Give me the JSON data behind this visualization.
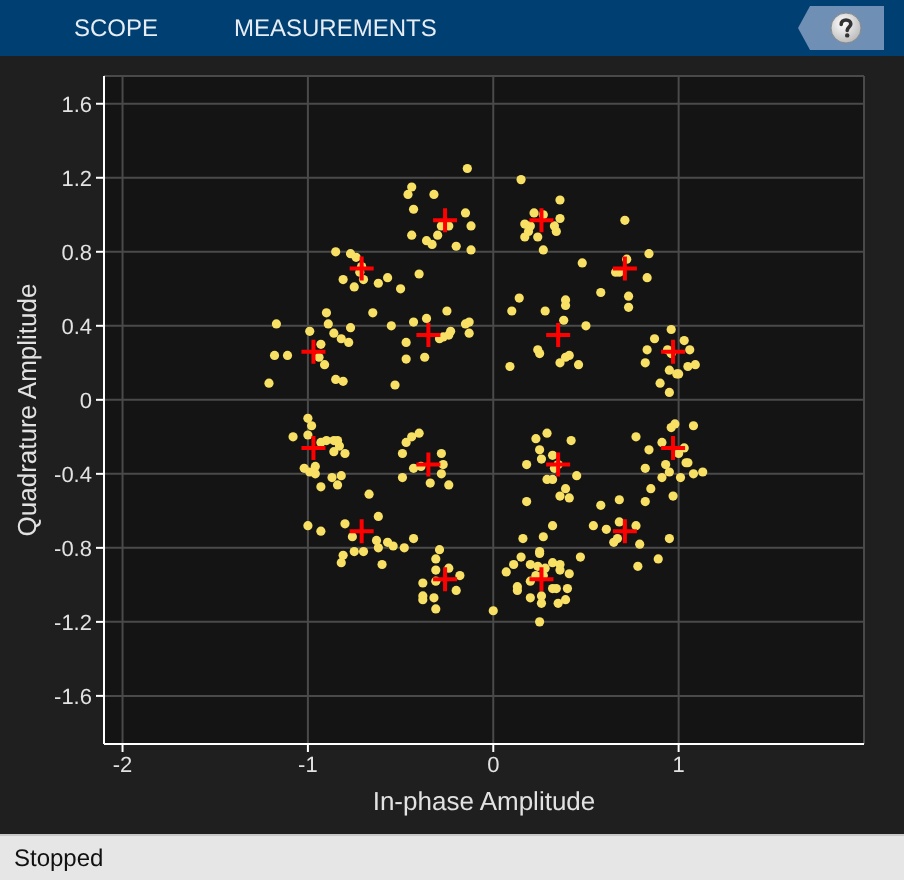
{
  "chart_data": {
    "type": "scatter",
    "xlabel": "In-phase Amplitude",
    "ylabel": "Quadrature Amplitude",
    "annotations": [
      "SCOPE",
      "MEASUREMENTS",
      "Stopped"
    ],
    "xlim": [
      -2.1,
      2
    ],
    "xticks": [
      -2,
      -1,
      0,
      1
    ],
    "ylim": [
      -1.86,
      1.75
    ],
    "yticks": [
      -1.6,
      -1.2,
      -0.8,
      -0.4,
      0,
      0.4,
      0.8,
      1.2,
      1.6
    ],
    "grid": true,
    "series": [
      {
        "color": "#f8e064",
        "marker": "circle",
        "x": [
          -0.14,
          -0.44,
          -0.46,
          -0.32,
          -0.43,
          -0.15,
          -0.28,
          -0.24,
          -0.12,
          -0.44,
          -0.36,
          -0.33,
          -0.3,
          -0.2,
          -0.12,
          -0.85,
          -0.77,
          -0.74,
          -0.71,
          -0.72,
          -0.81,
          -0.75,
          -0.7,
          -0.62,
          -0.57,
          -0.5,
          -0.4,
          -1.17,
          -0.9,
          -0.89,
          -0.99,
          -0.86,
          -0.82,
          -0.78,
          -0.77,
          -0.65,
          -0.55,
          -0.43,
          -0.36,
          -0.25,
          -0.47,
          -0.47,
          -0.37,
          -0.29,
          -0.27,
          -0.24,
          -0.23,
          -0.15,
          -0.13,
          -0.13,
          -0.93,
          -1.18,
          -1.11,
          -0.94,
          -0.91,
          -1.21,
          -0.85,
          -0.81,
          -0.53,
          0.15,
          0.36,
          0.22,
          0.27,
          0.36,
          0.17,
          0.2,
          0.33,
          0.34,
          0.19,
          0.17,
          0.24,
          0.27,
          0.71,
          0.48,
          0.72,
          0.84,
          0.66,
          0.68,
          0.83,
          0.14,
          0.1,
          0.28,
          0.39,
          0.39,
          0.58,
          0.73,
          0.73,
          0.38,
          0.5,
          0.24,
          0.25,
          0.39,
          0.41,
          0.36,
          0.46,
          0.09,
          0.87,
          0.96,
          1.03,
          1.06,
          0.83,
          0.94,
          0.96,
          0.82,
          0.95,
          0.99,
          1.0,
          1.05,
          1.09,
          0.9,
          0.95,
          -1.0,
          -0.98,
          -1.08,
          -1.0,
          -0.93,
          -0.9,
          -0.86,
          -0.84,
          -0.83,
          -0.86,
          -0.8,
          -0.96,
          -1.02,
          -0.99,
          -0.96,
          -0.87,
          -0.82,
          -0.93,
          -0.84,
          -0.67,
          -0.49,
          -0.47,
          -0.44,
          -0.4,
          -0.43,
          -0.39,
          -0.49,
          -0.34,
          -0.28,
          -0.27,
          -0.28,
          -0.24,
          -0.62,
          -0.8,
          -1.0,
          -0.93,
          -0.76,
          -0.63,
          -0.57,
          -0.54,
          -0.48,
          -0.43,
          -0.75,
          -0.7,
          -0.62,
          -0.81,
          -0.82,
          -0.6,
          -0.29,
          -0.31,
          -0.31,
          -0.31,
          -0.24,
          -0.18,
          -0.38,
          -0.38,
          -0.38,
          -0.32,
          -0.31,
          -0.2,
          0.0,
          0.07,
          0.29,
          0.23,
          0.42,
          0.25,
          0.32,
          0.26,
          0.18,
          0.35,
          0.33,
          0.29,
          0.32,
          0.45,
          0.39,
          0.36,
          0.41,
          0.18,
          0.58,
          0.68,
          0.32,
          0.16,
          0.27,
          0.54,
          0.61,
          0.65,
          0.67,
          0.68,
          0.77,
          0.79,
          0.95,
          0.89,
          0.78,
          0.77,
          0.84,
          0.91,
          0.96,
          0.98,
          1.08,
          1.03,
          1.0,
          1.05,
          1.04,
          0.93,
          0.82,
          0.91,
          0.95,
          1.01,
          1.08,
          1.13,
          0.85,
          0.82,
          0.97,
          0.15,
          0.11,
          0.2,
          0.24,
          0.25,
          0.25,
          0.28,
          0.32,
          0.36,
          0.36,
          0.41,
          0.47,
          0.2,
          0.13,
          0.13,
          0.2,
          0.26,
          0.26,
          0.32,
          0.34,
          0.4,
          0.35,
          0.39,
          0.25,
          0.23,
          0.27
        ],
        "values": [
          1.25,
          1.15,
          1.11,
          1.11,
          1.03,
          1.01,
          0.94,
          0.94,
          0.94,
          0.89,
          0.86,
          0.84,
          0.89,
          0.83,
          0.81,
          0.8,
          0.79,
          0.77,
          0.72,
          0.69,
          0.65,
          0.61,
          0.65,
          0.63,
          0.66,
          0.6,
          0.68,
          0.41,
          0.47,
          0.41,
          0.37,
          0.36,
          0.33,
          0.31,
          0.39,
          0.47,
          0.4,
          0.42,
          0.44,
          0.48,
          0.31,
          0.22,
          0.23,
          0.33,
          0.34,
          0.35,
          0.37,
          0.41,
          0.42,
          0.36,
          0.3,
          0.24,
          0.24,
          0.23,
          0.19,
          0.09,
          0.11,
          0.1,
          0.08,
          1.19,
          1.08,
          1.01,
          1.0,
          0.98,
          0.95,
          0.94,
          0.94,
          0.91,
          0.91,
          0.88,
          0.88,
          0.81,
          0.97,
          0.74,
          0.76,
          0.79,
          0.69,
          0.69,
          0.66,
          0.55,
          0.48,
          0.48,
          0.54,
          0.51,
          0.58,
          0.56,
          0.5,
          0.43,
          0.4,
          0.27,
          0.25,
          0.23,
          0.24,
          0.2,
          0.19,
          0.18,
          0.33,
          0.38,
          0.32,
          0.27,
          0.27,
          0.27,
          0.25,
          0.2,
          0.16,
          0.14,
          0.14,
          0.18,
          0.19,
          0.09,
          0.04,
          -0.1,
          -0.14,
          -0.2,
          -0.19,
          -0.23,
          -0.22,
          -0.22,
          -0.22,
          -0.25,
          -0.28,
          -0.29,
          -0.36,
          -0.37,
          -0.39,
          -0.4,
          -0.42,
          -0.41,
          -0.47,
          -0.46,
          -0.51,
          -0.29,
          -0.23,
          -0.2,
          -0.18,
          -0.37,
          -0.36,
          -0.42,
          -0.45,
          -0.29,
          -0.35,
          -0.4,
          -0.46,
          -0.63,
          -0.67,
          -0.68,
          -0.71,
          -0.74,
          -0.76,
          -0.77,
          -0.79,
          -0.8,
          -0.75,
          -0.82,
          -0.82,
          -0.8,
          -0.84,
          -0.88,
          -0.89,
          -0.81,
          -0.86,
          -0.92,
          -0.98,
          -0.91,
          -0.95,
          -0.99,
          -1.06,
          -1.08,
          -1.07,
          -1.13,
          -1.03,
          -1.14,
          -0.93,
          -0.18,
          -0.21,
          -0.22,
          -0.27,
          -0.3,
          -0.32,
          -0.35,
          -0.35,
          -0.37,
          -0.43,
          -0.43,
          -0.41,
          -0.48,
          -0.52,
          -0.53,
          -0.55,
          -0.57,
          -0.54,
          -0.68,
          -0.75,
          -0.74,
          -0.68,
          -0.7,
          -0.77,
          -0.75,
          -0.66,
          -0.68,
          -0.78,
          -0.75,
          -0.86,
          -0.9,
          -0.2,
          -0.27,
          -0.23,
          -0.15,
          -0.13,
          -0.14,
          -0.26,
          -0.29,
          -0.34,
          -0.34,
          -0.35,
          -0.37,
          -0.42,
          -0.39,
          -0.42,
          -0.4,
          -0.39,
          -0.48,
          -0.55,
          -0.52,
          -0.85,
          -0.89,
          -0.89,
          -0.9,
          -0.83,
          -0.82,
          -0.91,
          -0.88,
          -0.89,
          -0.92,
          -0.94,
          -0.85,
          -0.98,
          -1.03,
          -1.01,
          -1.07,
          -1.06,
          -1.1,
          -1.02,
          -1.02,
          -1.02,
          -1.1,
          -1.08,
          -1.2,
          -0.95,
          -0.95
        ]
      },
      {
        "color": "#ff0000",
        "marker": "cross",
        "x": [
          -0.26,
          -0.71,
          -0.35,
          -0.97,
          0.26,
          0.71,
          0.35,
          0.97,
          -0.97,
          -0.35,
          -0.71,
          -0.26,
          0.97,
          0.35,
          0.71,
          0.26
        ],
        "values": [
          0.97,
          0.71,
          0.35,
          0.26,
          0.97,
          0.71,
          0.35,
          0.26,
          -0.26,
          -0.35,
          -0.71,
          -0.97,
          -0.26,
          -0.35,
          -0.71,
          -0.97
        ]
      }
    ]
  }
}
